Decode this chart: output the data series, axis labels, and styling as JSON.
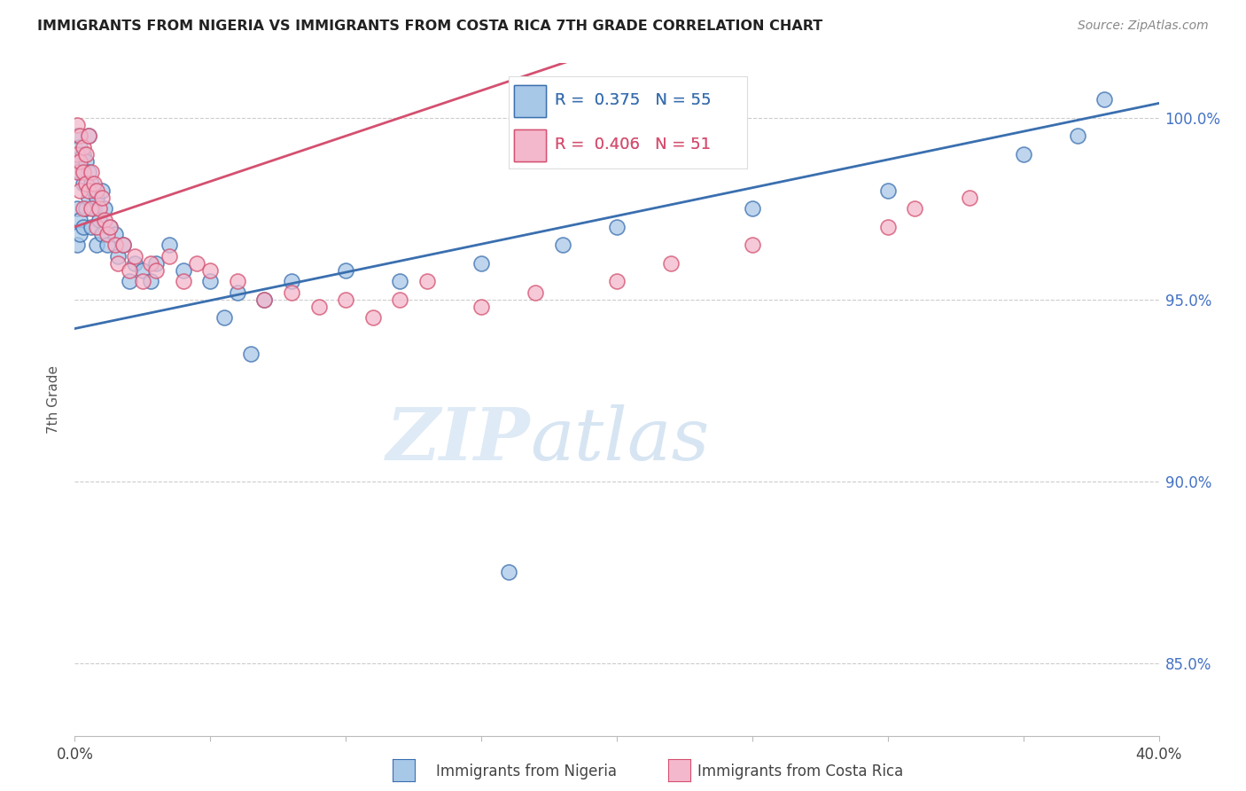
{
  "title": "IMMIGRANTS FROM NIGERIA VS IMMIGRANTS FROM COSTA RICA 7TH GRADE CORRELATION CHART",
  "source": "Source: ZipAtlas.com",
  "ylabel": "7th Grade",
  "legend_blue_r": "R = ",
  "legend_blue_rv": "0.375",
  "legend_blue_n": "  N = ",
  "legend_blue_nv": "55",
  "legend_pink_r": "R = ",
  "legend_pink_rv": "0.406",
  "legend_pink_n": "  N = ",
  "legend_pink_nv": "51",
  "blue_color": "#a8c8e8",
  "pink_color": "#f4b8cc",
  "trendline_blue": "#3a6faf",
  "trendline_pink": "#d45070",
  "watermark_zip": "ZIP",
  "watermark_atlas": "atlas",
  "nigeria_x": [
    0.001,
    0.001,
    0.001,
    0.001,
    0.002,
    0.002,
    0.002,
    0.002,
    0.003,
    0.003,
    0.003,
    0.004,
    0.004,
    0.005,
    0.005,
    0.005,
    0.006,
    0.006,
    0.007,
    0.007,
    0.008,
    0.008,
    0.009,
    0.01,
    0.01,
    0.011,
    0.012,
    0.013,
    0.015,
    0.016,
    0.018,
    0.02,
    0.022,
    0.025,
    0.028,
    0.03,
    0.035,
    0.04,
    0.05,
    0.06,
    0.07,
    0.08,
    0.1,
    0.12,
    0.15,
    0.18,
    0.2,
    0.25,
    0.3,
    0.35,
    0.37,
    0.38,
    0.055,
    0.065,
    0.16
  ],
  "nigeria_y": [
    99.5,
    98.8,
    97.5,
    96.5,
    99.2,
    98.5,
    97.2,
    96.8,
    99.0,
    98.2,
    97.0,
    98.8,
    97.5,
    99.5,
    98.5,
    97.8,
    98.2,
    97.0,
    98.0,
    97.5,
    97.8,
    96.5,
    97.2,
    98.0,
    96.8,
    97.5,
    96.5,
    97.0,
    96.8,
    96.2,
    96.5,
    95.5,
    96.0,
    95.8,
    95.5,
    96.0,
    96.5,
    95.8,
    95.5,
    95.2,
    95.0,
    95.5,
    95.8,
    95.5,
    96.0,
    96.5,
    97.0,
    97.5,
    98.0,
    99.0,
    99.5,
    100.5,
    94.5,
    93.5,
    87.5
  ],
  "costarica_x": [
    0.001,
    0.001,
    0.001,
    0.002,
    0.002,
    0.002,
    0.003,
    0.003,
    0.003,
    0.004,
    0.004,
    0.005,
    0.005,
    0.006,
    0.006,
    0.007,
    0.008,
    0.008,
    0.009,
    0.01,
    0.011,
    0.012,
    0.013,
    0.015,
    0.016,
    0.018,
    0.02,
    0.022,
    0.025,
    0.028,
    0.03,
    0.035,
    0.04,
    0.045,
    0.05,
    0.06,
    0.07,
    0.08,
    0.09,
    0.1,
    0.11,
    0.12,
    0.13,
    0.15,
    0.17,
    0.2,
    0.22,
    0.25,
    0.3,
    0.31,
    0.33
  ],
  "costarica_y": [
    99.8,
    99.0,
    98.5,
    99.5,
    98.8,
    98.0,
    99.2,
    98.5,
    97.5,
    99.0,
    98.2,
    99.5,
    98.0,
    98.5,
    97.5,
    98.2,
    98.0,
    97.0,
    97.5,
    97.8,
    97.2,
    96.8,
    97.0,
    96.5,
    96.0,
    96.5,
    95.8,
    96.2,
    95.5,
    96.0,
    95.8,
    96.2,
    95.5,
    96.0,
    95.8,
    95.5,
    95.0,
    95.2,
    94.8,
    95.0,
    94.5,
    95.0,
    95.5,
    94.8,
    95.2,
    95.5,
    96.0,
    96.5,
    97.0,
    97.5,
    97.8
  ],
  "xlim": [
    0.0,
    0.4
  ],
  "ylim": [
    83.0,
    101.5
  ],
  "y_ticks": [
    85.0,
    90.0,
    95.0,
    100.0
  ],
  "x_ticks": [
    0.0,
    0.05,
    0.1,
    0.15,
    0.2,
    0.25,
    0.3,
    0.35,
    0.4
  ],
  "background_color": "#ffffff"
}
